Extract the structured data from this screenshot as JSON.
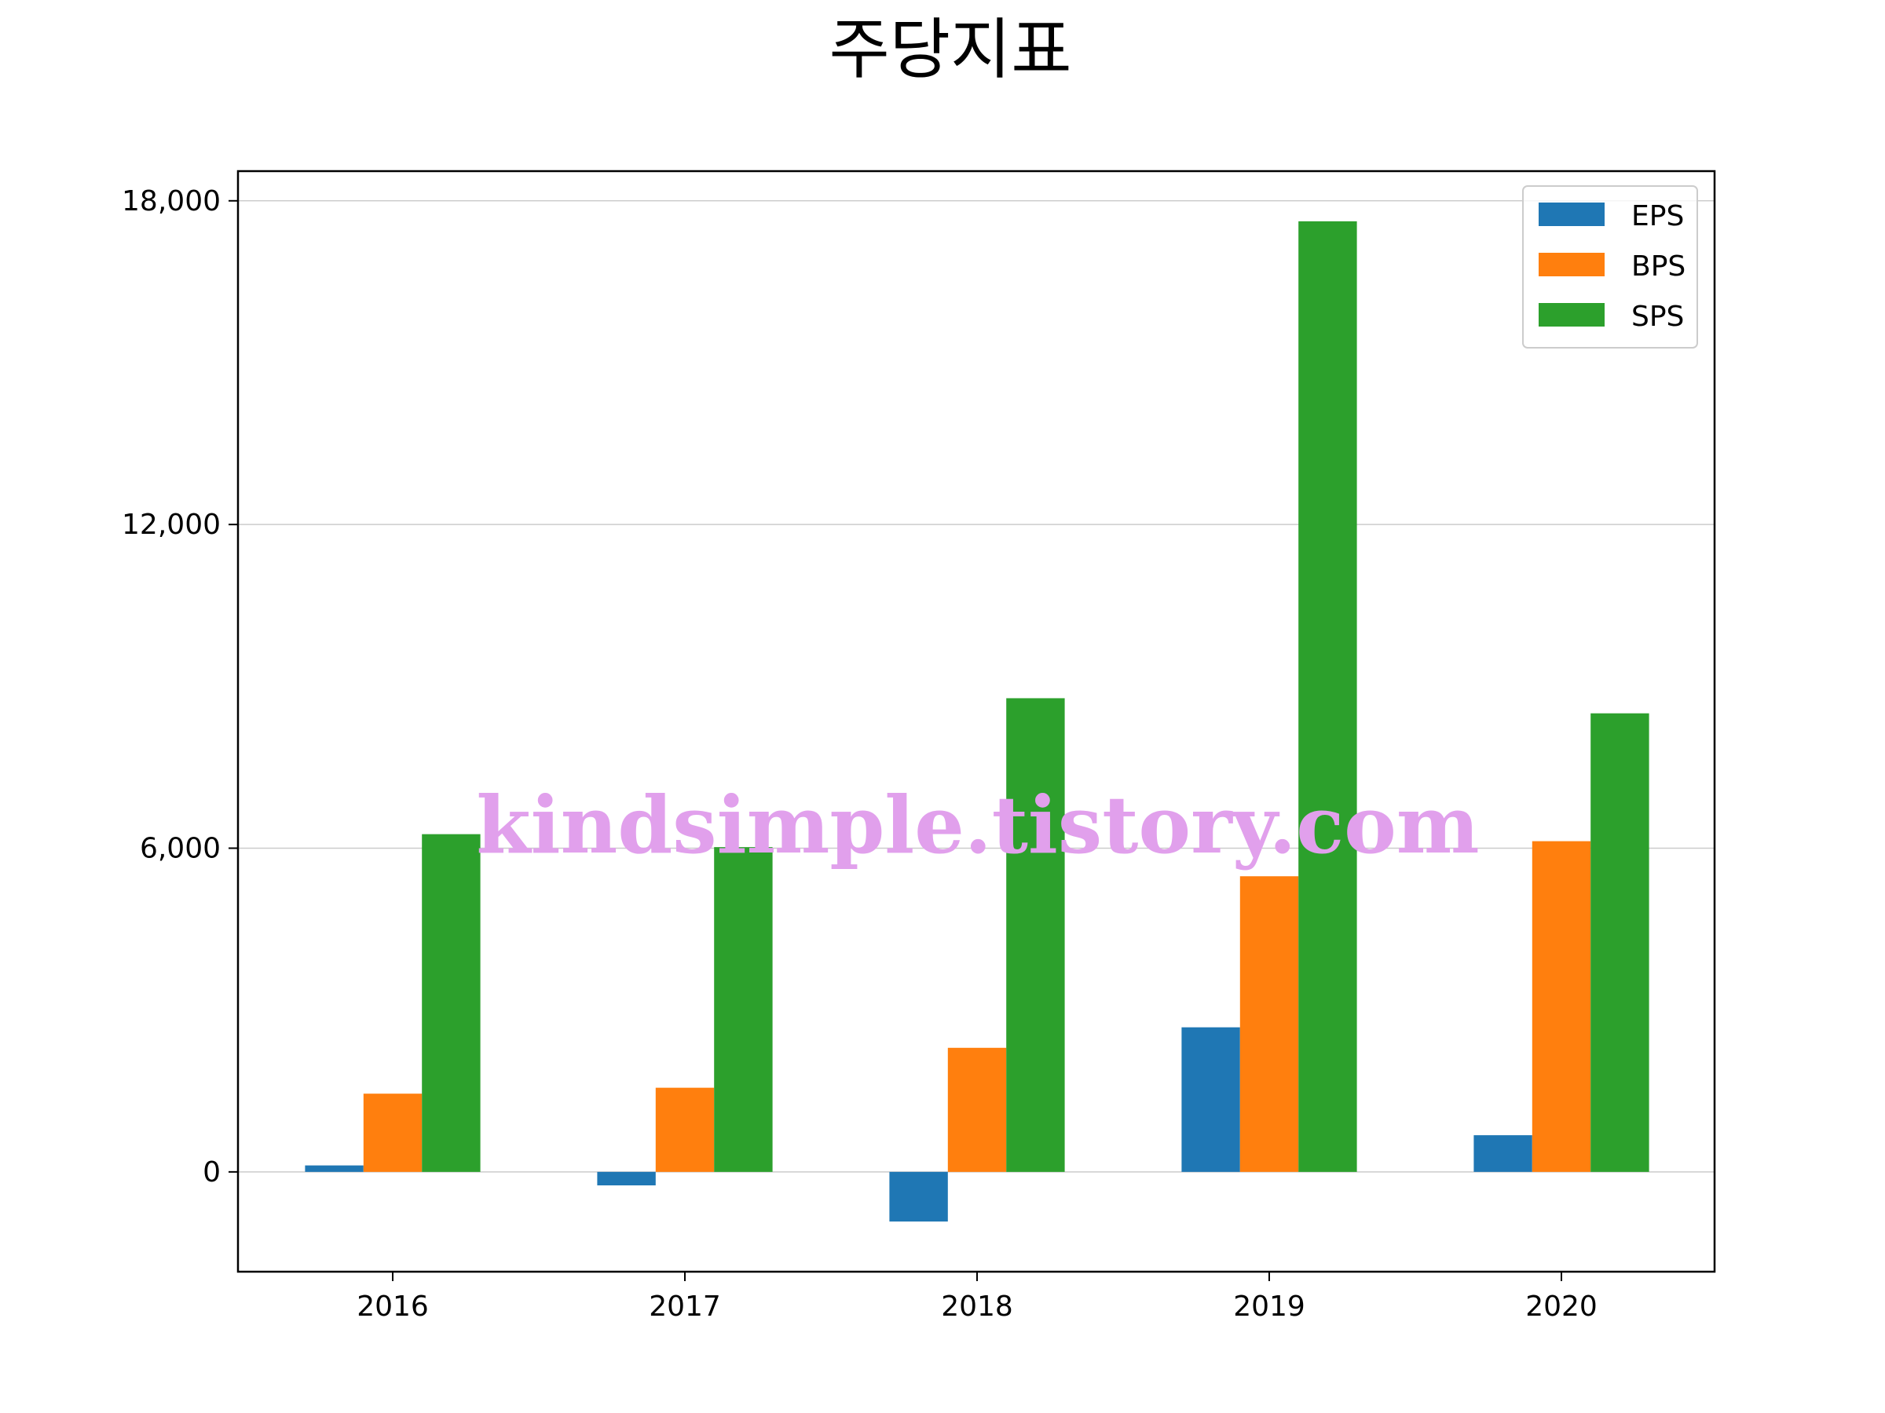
{
  "chart_data": {
    "type": "bar",
    "title": "주당지표",
    "categories": [
      "2016",
      "2017",
      "2018",
      "2019",
      "2020"
    ],
    "series": [
      {
        "name": "EPS",
        "color": "#1f77b4",
        "values": [
          120,
          -250,
          -920,
          2680,
          680
        ]
      },
      {
        "name": "BPS",
        "color": "#ff7f0e",
        "values": [
          1450,
          1560,
          2300,
          5480,
          6130
        ]
      },
      {
        "name": "SPS",
        "color": "#2ca02c",
        "values": [
          6260,
          6020,
          8780,
          17620,
          8500
        ]
      }
    ],
    "yticks": [
      0,
      6000,
      12000,
      18000
    ],
    "ytick_labels": [
      "0",
      "6,000",
      "12,000",
      "18,000"
    ],
    "ylim": [
      -1850,
      18550
    ],
    "grid": true,
    "legend_position": "top-right"
  },
  "watermark": {
    "text": "kindsimple.tistory.com",
    "color": "#e1a0ec"
  }
}
